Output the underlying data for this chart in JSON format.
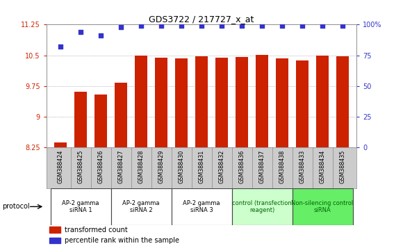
{
  "title": "GDS3722 / 217727_x_at",
  "samples": [
    "GSM388424",
    "GSM388425",
    "GSM388426",
    "GSM388427",
    "GSM388428",
    "GSM388429",
    "GSM388430",
    "GSM388431",
    "GSM388432",
    "GSM388436",
    "GSM388437",
    "GSM388438",
    "GSM388433",
    "GSM388434",
    "GSM388435"
  ],
  "bar_values": [
    8.37,
    9.62,
    9.55,
    9.83,
    10.49,
    10.44,
    10.42,
    10.47,
    10.44,
    10.46,
    10.51,
    10.43,
    10.38,
    10.5,
    10.48
  ],
  "dot_values": [
    82,
    94,
    91,
    98,
    99,
    99,
    99,
    99,
    99,
    99,
    99,
    99,
    99,
    99,
    99
  ],
  "bar_color": "#cc2200",
  "dot_color": "#3333cc",
  "ylim_left": [
    8.25,
    11.25
  ],
  "ylim_right": [
    0,
    100
  ],
  "yticks_left": [
    8.25,
    9.0,
    9.75,
    10.5,
    11.25
  ],
  "ytick_labels_left": [
    "8.25",
    "9",
    "9.75",
    "10.5",
    "11.25"
  ],
  "yticks_right": [
    0,
    25,
    50,
    75,
    100
  ],
  "ytick_labels_right": [
    "0",
    "25",
    "50",
    "75",
    "100%"
  ],
  "groups": [
    {
      "label": "AP-2 gamma\nsiRNA 1",
      "indices": [
        0,
        1,
        2
      ],
      "color": "#ffffff",
      "text_color": "#000000"
    },
    {
      "label": "AP-2 gamma\nsiRNA 2",
      "indices": [
        3,
        4,
        5
      ],
      "color": "#ffffff",
      "text_color": "#000000"
    },
    {
      "label": "AP-2 gamma\nsiRNA 3",
      "indices": [
        6,
        7,
        8
      ],
      "color": "#ffffff",
      "text_color": "#000000"
    },
    {
      "label": "control (transfection\nreagent)",
      "indices": [
        9,
        10,
        11
      ],
      "color": "#ccffcc",
      "text_color": "#006600"
    },
    {
      "label": "Non-silencing control\nsiRNA",
      "indices": [
        12,
        13,
        14
      ],
      "color": "#66ee66",
      "text_color": "#006600"
    }
  ],
  "protocol_label": "protocol",
  "legend_items": [
    {
      "color": "#cc2200",
      "label": "transformed count"
    },
    {
      "color": "#3333cc",
      "label": "percentile rank within the sample"
    }
  ],
  "left_tick_color": "#cc2200",
  "right_tick_color": "#3333cc",
  "grid_color": "#888888",
  "plot_bg": "#ffffff",
  "sample_area_bg": "#cccccc",
  "bar_bottom": 8.25
}
